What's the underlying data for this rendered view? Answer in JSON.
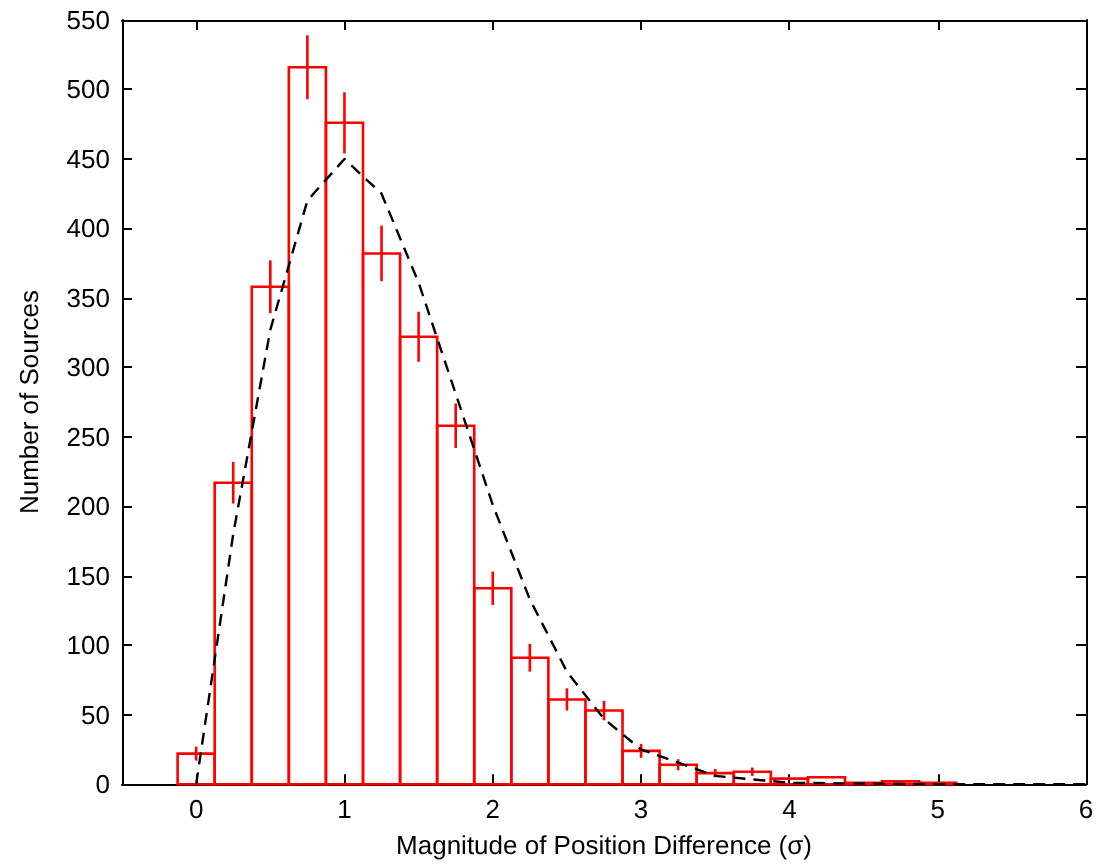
{
  "chart_data": {
    "type": "histogram",
    "xlabel": "Magnitude of Position Difference (σ)",
    "ylabel": "Number of Sources",
    "bins": [
      -0.125,
      0.125,
      0.375,
      0.625,
      0.875,
      1.125,
      1.375,
      1.625,
      1.875,
      2.125,
      2.375,
      2.625,
      2.875,
      3.125,
      3.375,
      3.625,
      3.875,
      4.125,
      4.375,
      4.625,
      4.875,
      5.125
    ],
    "values": [
      22,
      217,
      358,
      516,
      476,
      382,
      322,
      258,
      141,
      91,
      61,
      53,
      24,
      14,
      8,
      9,
      4,
      5,
      1,
      2,
      1
    ],
    "errors": [
      5,
      15,
      19,
      23,
      22,
      20,
      18,
      16,
      12,
      10,
      8,
      7,
      5,
      4,
      3,
      3,
      null,
      null,
      null,
      null,
      null
    ],
    "color": "#ff0000",
    "series": [
      {
        "type": "line",
        "color": "#000000",
        "line_style": "dashed",
        "marker": "none",
        "x": [
          0,
          0.25,
          0.5,
          0.75,
          1,
          1.25,
          1.5,
          1.75,
          2,
          2.25,
          2.5,
          2.75,
          3,
          3.5,
          4,
          5,
          6
        ],
        "values": [
          0,
          180,
          327,
          420,
          450,
          425,
          361,
          281,
          201,
          133,
          81,
          47,
          25,
          6,
          1,
          0,
          0
        ]
      }
    ],
    "xlim": [
      -0.5,
      6
    ],
    "xticks": [
      0,
      1,
      2,
      3,
      4,
      5,
      6
    ],
    "ylim": [
      0,
      550
    ],
    "yticks": [
      0,
      50,
      100,
      150,
      200,
      250,
      300,
      350,
      400,
      450,
      500,
      550
    ],
    "grid": false
  }
}
